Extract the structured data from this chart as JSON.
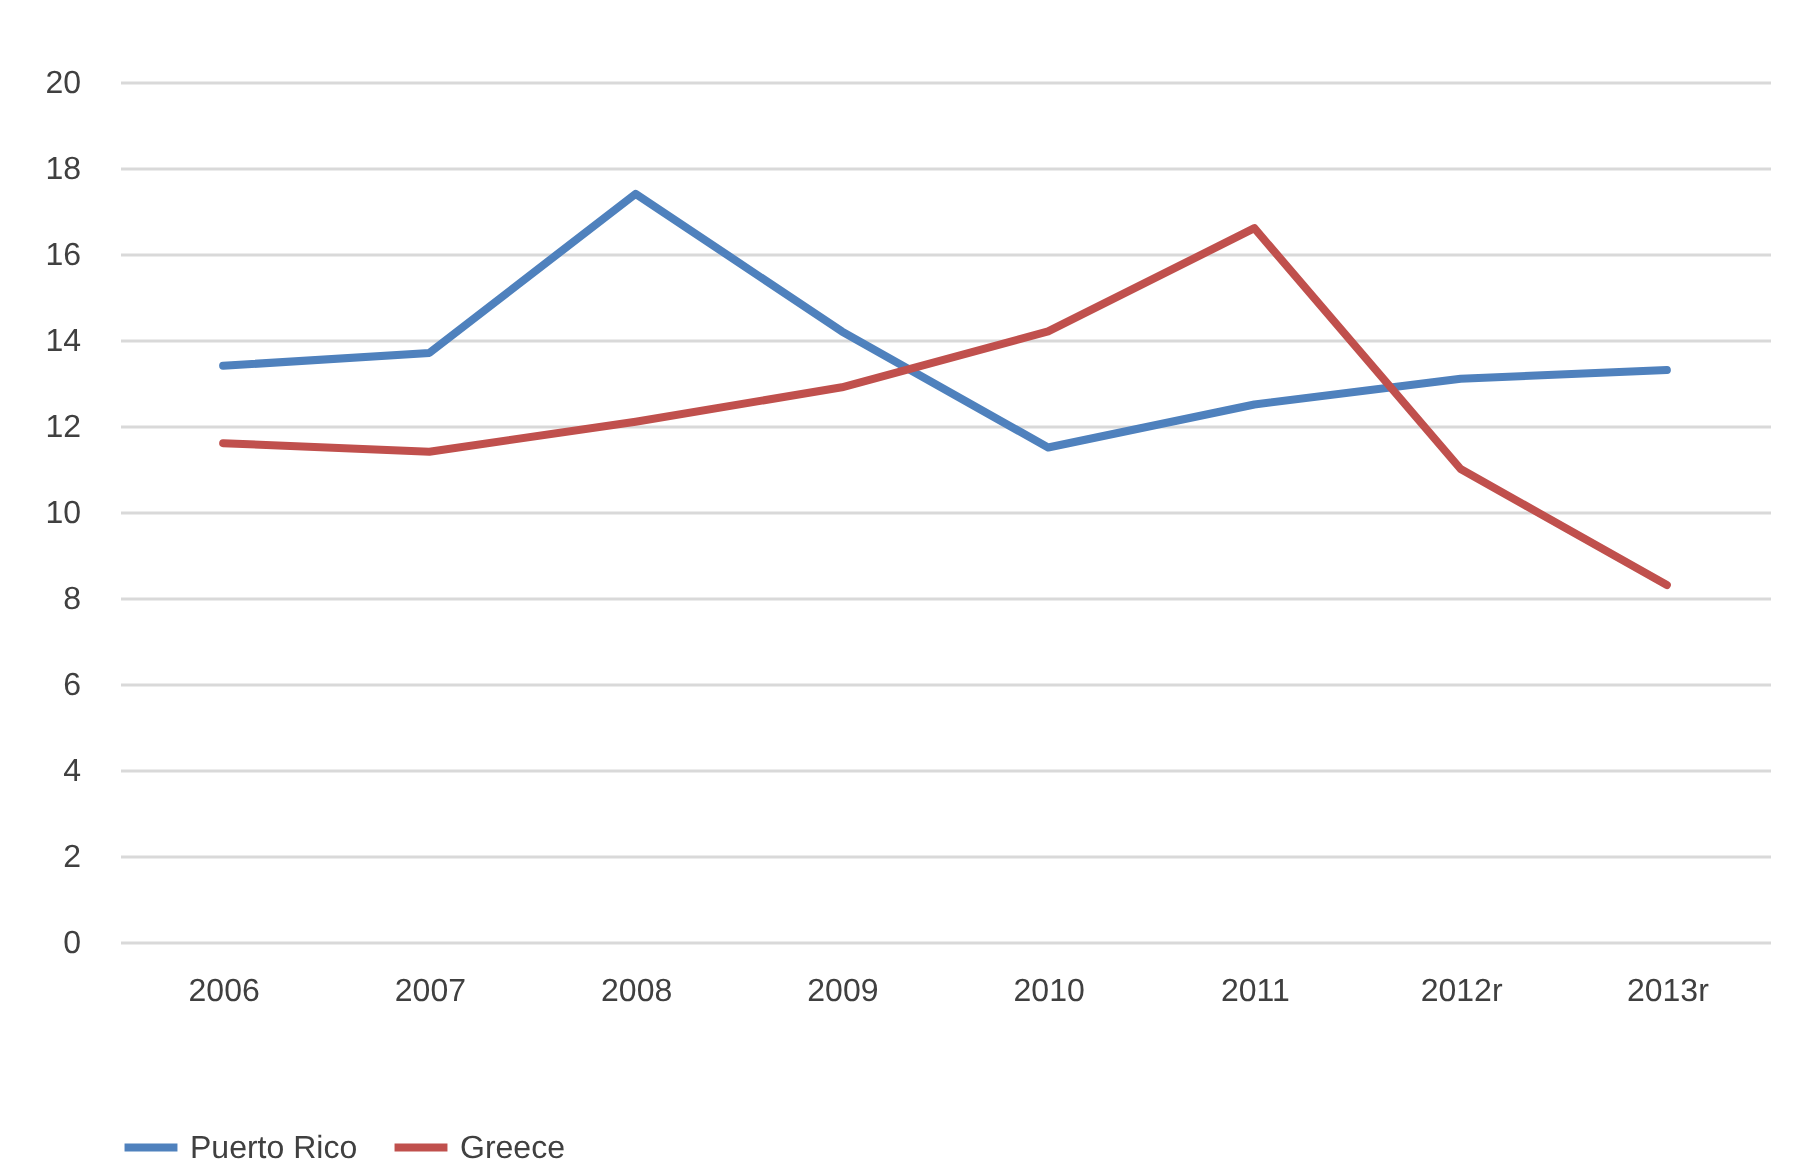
{
  "chart_data": {
    "type": "line",
    "categories": [
      "2006",
      "2007",
      "2008",
      "2009",
      "2010",
      "2011",
      "2012r",
      "2013r"
    ],
    "series": [
      {
        "name": "Puerto Rico",
        "color": "#4f81bd",
        "values": [
          13.4,
          13.7,
          17.4,
          14.2,
          11.5,
          12.5,
          13.1,
          13.3
        ]
      },
      {
        "name": "Greece",
        "color": "#c0504d",
        "values": [
          11.6,
          11.4,
          12.1,
          12.9,
          14.2,
          16.6,
          11.0,
          8.3
        ]
      }
    ],
    "ylim": [
      0,
      20
    ],
    "yticks": [
      0,
      2,
      4,
      6,
      8,
      10,
      12,
      14,
      16,
      18,
      20
    ],
    "grid": "y",
    "legend": "bottom",
    "marker": "none",
    "line_style": "solid"
  }
}
